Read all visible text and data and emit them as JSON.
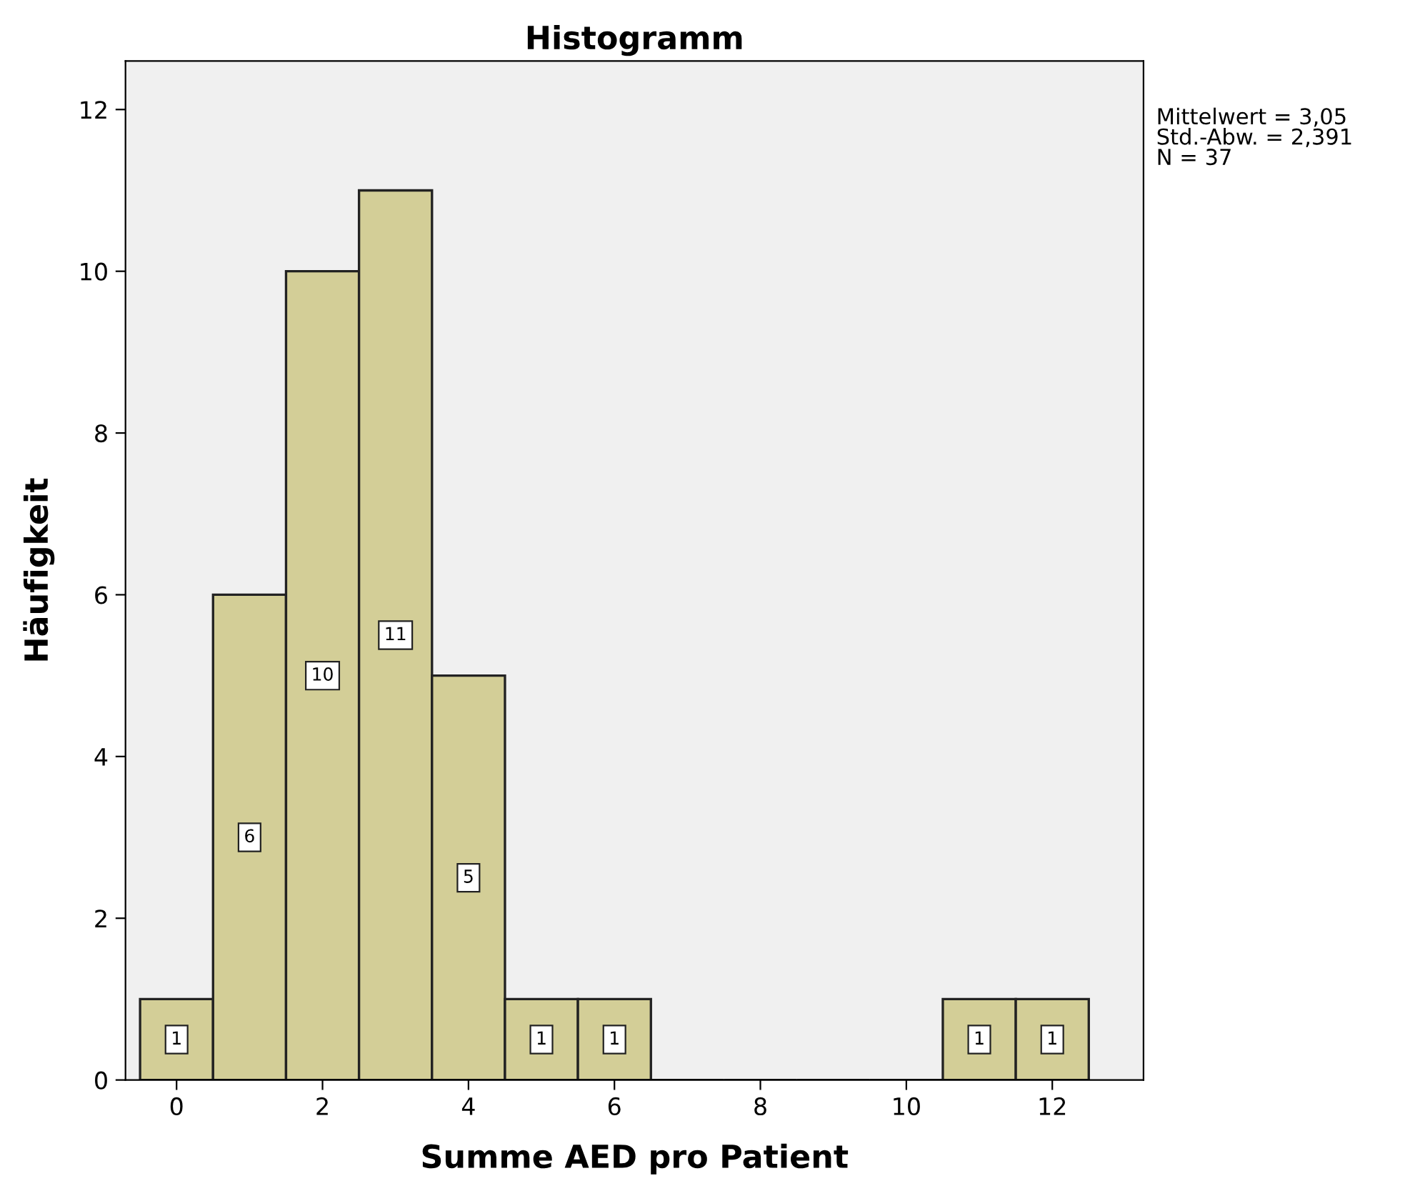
{
  "chart_data": {
    "type": "histogram",
    "title": "Histogramm",
    "xlabel": "Summe AED pro Patient",
    "ylabel": "Häufigkeit",
    "bins": [
      -0.5,
      0.5,
      1.5,
      2.5,
      3.5,
      4.5,
      5.5,
      6.5,
      7.5,
      8.5,
      9.5,
      10.5,
      11.5,
      12.5
    ],
    "values": [
      1,
      6,
      10,
      11,
      5,
      1,
      1,
      0,
      0,
      0,
      0,
      1,
      1
    ],
    "value_labels": [
      "1",
      "6",
      "10",
      "11",
      "5",
      "1",
      "1",
      null,
      null,
      null,
      null,
      "1",
      "1"
    ],
    "color": "#d3ce97",
    "xlim": [
      -0.7,
      13.25
    ],
    "xticks": [
      0,
      2,
      4,
      6,
      8,
      10,
      12
    ],
    "ylim": [
      0,
      12.6
    ],
    "yticks": [
      0,
      2,
      4,
      6,
      8,
      10,
      12
    ],
    "grid": false,
    "annotations": [
      "Mittelwert = 3,05",
      "Std.-Abw. = 2,391",
      "N = 37"
    ]
  }
}
